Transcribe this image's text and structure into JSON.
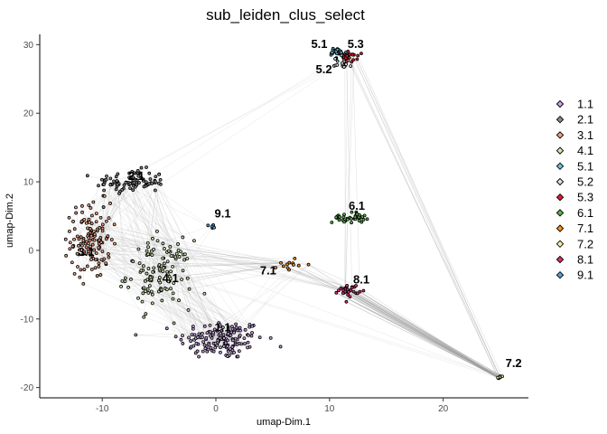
{
  "chart_data": {
    "type": "scatter",
    "title": "sub_leiden_clus_select",
    "xlabel": "umap-Dim.1",
    "ylabel": "umap-Dim.2",
    "xlim": [
      -15.5,
      27.5
    ],
    "ylim": [
      -21.5,
      31.5
    ],
    "x_ticks": [
      -10,
      0,
      10,
      20
    ],
    "y_ticks": [
      -20,
      -10,
      0,
      10,
      20,
      30
    ],
    "grid": false,
    "legend_position": "right",
    "clusters": [
      {
        "name": "1.1",
        "color": "#c8a2e8",
        "center": [
          0.5,
          -13.0
        ],
        "spread": [
          3.4,
          2.6
        ],
        "count": 150
      },
      {
        "name": "2.1",
        "color": "#8a8a8a",
        "center": [
          -7.5,
          10.0
        ],
        "spread": [
          2.8,
          1.6
        ],
        "count": 90
      },
      {
        "name": "3.1",
        "color": "#f0a080",
        "center": [
          -11.0,
          1.5
        ],
        "spread": [
          1.6,
          5.0
        ],
        "count": 130
      },
      {
        "name": "4.1",
        "color": "#cfe8b0",
        "center": [
          -5.0,
          -3.5
        ],
        "spread": [
          2.6,
          4.5
        ],
        "count": 120
      },
      {
        "name": "5.1",
        "color": "#6ec0d8",
        "center": [
          10.7,
          28.8
        ],
        "spread": [
          0.7,
          0.8
        ],
        "count": 25
      },
      {
        "name": "5.2",
        "color": "#e0e0e0",
        "center": [
          11.2,
          27.3
        ],
        "spread": [
          0.7,
          0.7
        ],
        "count": 20
      },
      {
        "name": "5.3",
        "color": "#e8182a",
        "center": [
          11.8,
          28.2
        ],
        "spread": [
          0.6,
          0.7
        ],
        "count": 20
      },
      {
        "name": "6.1",
        "color": "#58b848",
        "center": [
          11.8,
          4.8
        ],
        "spread": [
          1.4,
          0.7
        ],
        "count": 35
      },
      {
        "name": "7.1",
        "color": "#f89018",
        "center": [
          6.5,
          -2.0
        ],
        "spread": [
          1.0,
          1.0
        ],
        "count": 12
      },
      {
        "name": "7.2",
        "color": "#f8f0a0",
        "center": [
          25.0,
          -18.5
        ],
        "spread": [
          0.25,
          0.18
        ],
        "count": 8
      },
      {
        "name": "8.1",
        "color": "#e0307a",
        "center": [
          11.7,
          -5.8
        ],
        "spread": [
          0.8,
          0.8
        ],
        "count": 30
      },
      {
        "name": "9.1",
        "color": "#58a0d8",
        "center": [
          -0.3,
          3.5
        ],
        "spread": [
          0.3,
          0.4
        ],
        "count": 6
      }
    ],
    "labels": [
      {
        "text": "1.1",
        "x": 0.6,
        "y": -11.8
      },
      {
        "text": "2.1",
        "x": -7.0,
        "y": 10.3
      },
      {
        "text": "3.1",
        "x": -11.4,
        "y": -0.8
      },
      {
        "text": "4.1",
        "x": -4.0,
        "y": -4.6
      },
      {
        "text": "5.1",
        "x": 9.1,
        "y": 29.5
      },
      {
        "text": "5.2",
        "x": 9.5,
        "y": 25.8
      },
      {
        "text": "5.3",
        "x": 12.3,
        "y": 29.5
      },
      {
        "text": "6.1",
        "x": 12.4,
        "y": 5.9
      },
      {
        "text": "7.1",
        "x": 4.6,
        "y": -3.5
      },
      {
        "text": "7.2",
        "x": 26.2,
        "y": -17.0
      },
      {
        "text": "8.1",
        "x": 12.8,
        "y": -4.8
      },
      {
        "text": "9.1",
        "x": 0.6,
        "y": 4.8
      }
    ]
  }
}
